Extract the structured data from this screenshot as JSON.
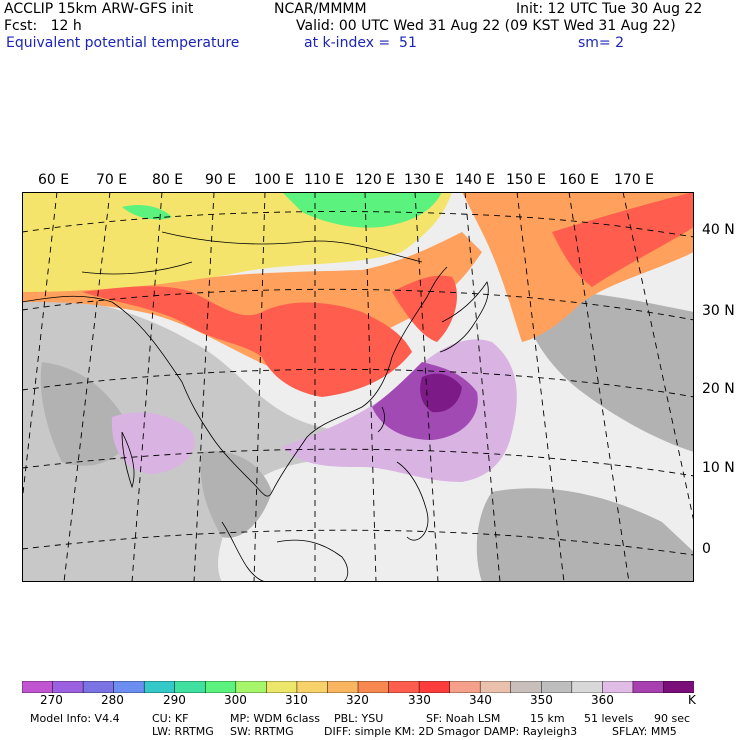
{
  "header": {
    "left_line1": "ACCLIP 15km ARW-GFS init",
    "left_line2": "Fcst:   12 h",
    "center_line1": "NCAR/MMMM",
    "right_line1": "Init: 12 UTC Tue 30 Aug 22",
    "right_line2": "Valid: 00 UTC Wed 31 Aug 22 (09 KST Wed 31 Aug 22)",
    "field_name": "Equivalent potential temperature",
    "level": "at k-index =  51",
    "smooth": "sm= 2"
  },
  "map": {
    "lon_labels": [
      "60 E",
      "70 E",
      "80 E",
      "90 E",
      "100 E",
      "110 E",
      "120 E",
      "130 E",
      "140 E",
      "150 E",
      "160 E",
      "170 E"
    ],
    "lat_labels": [
      "40 N",
      "30 N",
      "20 N",
      "10 N",
      "0"
    ],
    "colors": {
      "ocean_bg": "#eeeeee",
      "land_gray": "#c8c8c8",
      "dark_gray": "#b2b2b2",
      "red": "#ff5e4e",
      "orange": "#ffa05c",
      "yellow": "#f5e46c",
      "green": "#5cf27e",
      "light_purple": "#d9b3e2",
      "mid_purple": "#a24ab4",
      "dark_purple": "#7c1a88",
      "coast": "#000000"
    }
  },
  "colorbar": {
    "colors": [
      "#c155d1",
      "#9c61e0",
      "#7b73e4",
      "#6b8ef0",
      "#35c8c8",
      "#3fe0a0",
      "#5cf27e",
      "#a7f56a",
      "#ece76a",
      "#f7d16a",
      "#f9b560",
      "#f78850",
      "#ff5e4e",
      "#ff3c3c",
      "#f4a08a",
      "#e9c1ad",
      "#c8bfbb",
      "#bebebe",
      "#d8d8d8",
      "#e0bce6",
      "#a840b0",
      "#7a0f7a"
    ],
    "labels": [
      "270",
      "280",
      "290",
      "300",
      "310",
      "320",
      "330",
      "340",
      "350",
      "360",
      "K"
    ]
  },
  "footer": {
    "model_info": "Model Info: V4.4",
    "cu": "CU: KF",
    "mp": "MP: WDM 6class",
    "pbl": "PBL: YSU",
    "sf": "SF: Noah LSM",
    "res": "15 km",
    "levels": "51 levels",
    "dt": "90 sec",
    "lw": "LW: RRTMG",
    "sw": "SW: RRTMG",
    "diff": "DIFF: simple KM: 2D Smagor DAMP: Rayleigh3",
    "sflay": "SFLAY: MM5"
  }
}
